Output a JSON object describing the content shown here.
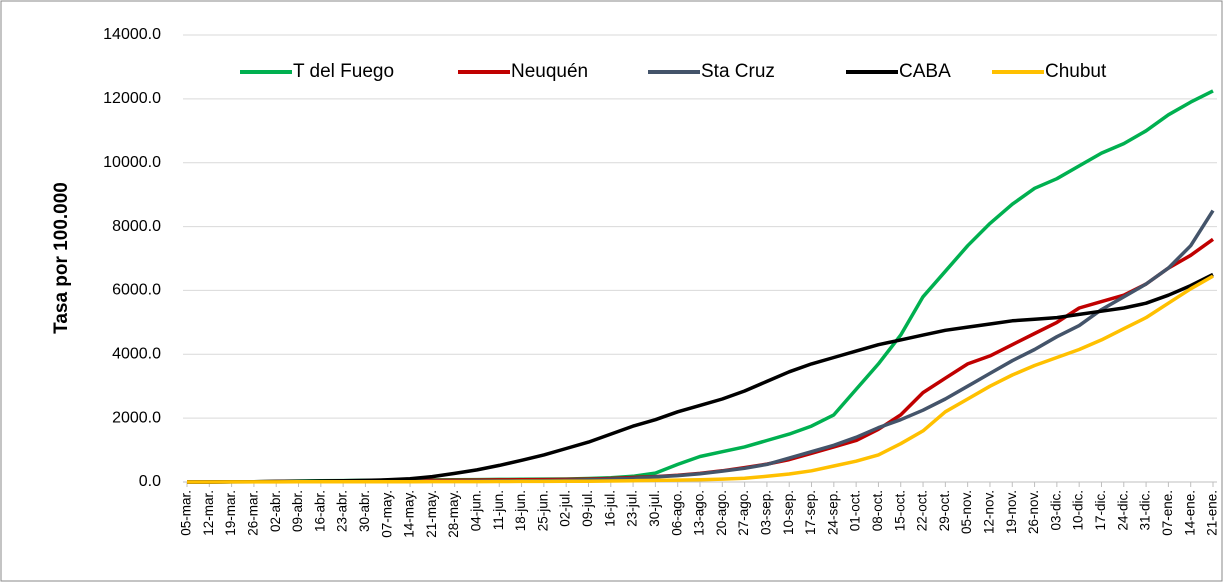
{
  "chart_data": {
    "type": "line",
    "y_label": "Tasa por 100.000",
    "categories": [
      "05-mar.",
      "12-mar.",
      "19-mar.",
      "26-mar.",
      "02-abr.",
      "09-abr.",
      "16-abr.",
      "23-abr.",
      "30-abr.",
      "07-may.",
      "14-may.",
      "21-may.",
      "28-may.",
      "04-jun.",
      "11-jun.",
      "18-jun.",
      "25-jun.",
      "02-jul.",
      "09-jul.",
      "16-jul.",
      "23-jul.",
      "30-jul.",
      "06-ago.",
      "13-ago.",
      "20-ago.",
      "27-ago.",
      "03-sep.",
      "10-sep.",
      "17-sep.",
      "24-sep.",
      "01-oct.",
      "08-oct.",
      "15-oct.",
      "22-oct.",
      "29-oct.",
      "05-nov.",
      "12-nov.",
      "19-nov.",
      "26-nov.",
      "03-dic.",
      "10-dic.",
      "17-dic.",
      "24-dic.",
      "31-dic.",
      "07-ene.",
      "14-ene.",
      "21-ene."
    ],
    "series": [
      {
        "name": "T del Fuego",
        "color": "#00b050",
        "values": [
          0,
          0,
          5,
          10,
          20,
          30,
          40,
          45,
          50,
          55,
          60,
          65,
          70,
          75,
          80,
          85,
          90,
          95,
          110,
          130,
          180,
          280,
          550,
          800,
          950,
          1100,
          1300,
          1500,
          1750,
          2100,
          2900,
          3700,
          4600,
          5800,
          6600,
          7400,
          8100,
          8700,
          9200,
          9500,
          9900,
          10300,
          10600,
          11000,
          11500,
          11900,
          12250
        ]
      },
      {
        "name": "Neuquén",
        "color": "#c00000",
        "values": [
          0,
          0,
          5,
          10,
          15,
          20,
          25,
          30,
          35,
          40,
          45,
          50,
          55,
          60,
          65,
          70,
          75,
          80,
          90,
          110,
          140,
          170,
          210,
          270,
          350,
          450,
          560,
          700,
          900,
          1100,
          1300,
          1650,
          2100,
          2800,
          3250,
          3700,
          3950,
          4300,
          4650,
          5000,
          5450,
          5650,
          5850,
          6200,
          6700,
          7100,
          7600
        ]
      },
      {
        "name": "Sta Cruz",
        "color": "#44546a",
        "values": [
          0,
          0,
          3,
          5,
          8,
          10,
          12,
          14,
          16,
          18,
          20,
          22,
          25,
          30,
          35,
          40,
          45,
          55,
          70,
          90,
          120,
          160,
          200,
          260,
          340,
          430,
          550,
          750,
          950,
          1150,
          1400,
          1700,
          1950,
          2250,
          2600,
          3000,
          3400,
          3800,
          4150,
          4550,
          4900,
          5400,
          5800,
          6200,
          6700,
          7400,
          8500
        ]
      },
      {
        "name": "CABA",
        "color": "#000000",
        "values": [
          0,
          0,
          5,
          10,
          15,
          20,
          30,
          40,
          50,
          70,
          100,
          170,
          270,
          380,
          520,
          680,
          850,
          1050,
          1250,
          1500,
          1750,
          1950,
          2200,
          2400,
          2600,
          2850,
          3150,
          3450,
          3700,
          3900,
          4100,
          4300,
          4450,
          4600,
          4750,
          4850,
          4950,
          5050,
          5100,
          5150,
          5250,
          5350,
          5450,
          5600,
          5850,
          6150,
          6500
        ]
      },
      {
        "name": "Chubut",
        "color": "#ffc000",
        "values": [
          0,
          0,
          2,
          3,
          4,
          5,
          6,
          7,
          8,
          9,
          10,
          11,
          12,
          14,
          16,
          18,
          20,
          22,
          25,
          30,
          40,
          50,
          60,
          70,
          90,
          120,
          180,
          250,
          350,
          500,
          650,
          850,
          1200,
          1600,
          2200,
          2600,
          3000,
          3350,
          3650,
          3900,
          4150,
          4450,
          4800,
          5150,
          5600,
          6050,
          6450
        ]
      }
    ],
    "ylim": [
      0,
      14000
    ],
    "yticks": [
      {
        "value": 0,
        "label": "0.0"
      },
      {
        "value": 2000,
        "label": "2000.0"
      },
      {
        "value": 4000,
        "label": "4000.0"
      },
      {
        "value": 6000,
        "label": "6000.0"
      },
      {
        "value": 8000,
        "label": "8000.0"
      },
      {
        "value": 10000,
        "label": "10000.0"
      },
      {
        "value": 12000,
        "label": "12000.0"
      },
      {
        "value": 14000,
        "label": "14000.0"
      }
    ],
    "grid": true
  }
}
